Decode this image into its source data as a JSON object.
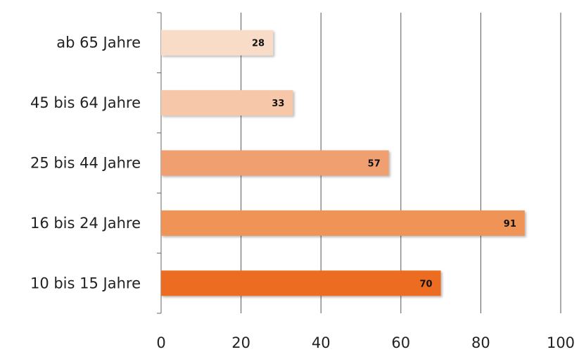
{
  "chart_data": {
    "type": "bar",
    "orientation": "horizontal",
    "categories": [
      "ab 65 Jahre",
      "45 bis 64 Jahre",
      "25 bis 44 Jahre",
      "16 bis 24 Jahre",
      "10 bis 15 Jahre"
    ],
    "values": [
      28,
      33,
      57,
      91,
      70
    ],
    "bar_colors": [
      "#f8dcc8",
      "#f6c7a8",
      "#f0a070",
      "#ef9357",
      "#ec6c20"
    ],
    "xlim": [
      0,
      100
    ],
    "xticks": [
      0,
      20,
      40,
      60,
      80,
      100
    ],
    "xtick_labels": [
      "0",
      "20",
      "40",
      "60",
      "80",
      "100"
    ],
    "grid": "vertical",
    "data_labels": true,
    "title": "",
    "xlabel": "",
    "ylabel": ""
  }
}
